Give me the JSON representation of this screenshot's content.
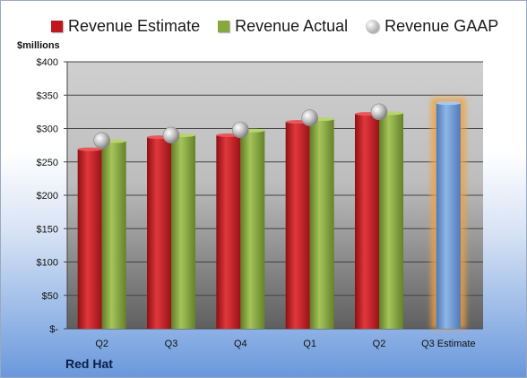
{
  "chart_data": {
    "type": "bar",
    "categories": [
      "Q2",
      "Q3",
      "Q4",
      "Q1",
      "Q2",
      "Q3 Estimate"
    ],
    "ylabel": "$millions",
    "ylim": [
      0,
      400
    ],
    "yticks": [
      "$-",
      "$50",
      "$100",
      "$150",
      "$200",
      "$250",
      "$300",
      "$350",
      "$400"
    ],
    "grid": true,
    "legend_position": "top",
    "series": [
      {
        "name": "Revenue Estimate",
        "type": "bar",
        "color": "#c0181e",
        "values": [
          269,
          287,
          290,
          310,
          322,
          null
        ]
      },
      {
        "name": "Revenue Actual",
        "type": "bar",
        "color": "#86a83e",
        "values": [
          281,
          290,
          297,
          314,
          323,
          null
        ]
      },
      {
        "name": "Revenue GAAP",
        "type": "marker",
        "color": "#b0b0b0",
        "values": [
          282,
          290,
          298,
          316,
          325,
          null
        ]
      },
      {
        "name": "Q3 Estimate",
        "type": "bar",
        "color": "#6d9ad6",
        "highlight": "#f2a33a",
        "values": [
          null,
          null,
          null,
          null,
          null,
          338
        ]
      }
    ]
  },
  "legend": {
    "estimate": "Revenue Estimate",
    "actual": "Revenue Actual",
    "gaap": "Revenue GAAP"
  },
  "axis": {
    "ylabel": "$millions"
  },
  "footer": {
    "company": "Red Hat"
  }
}
